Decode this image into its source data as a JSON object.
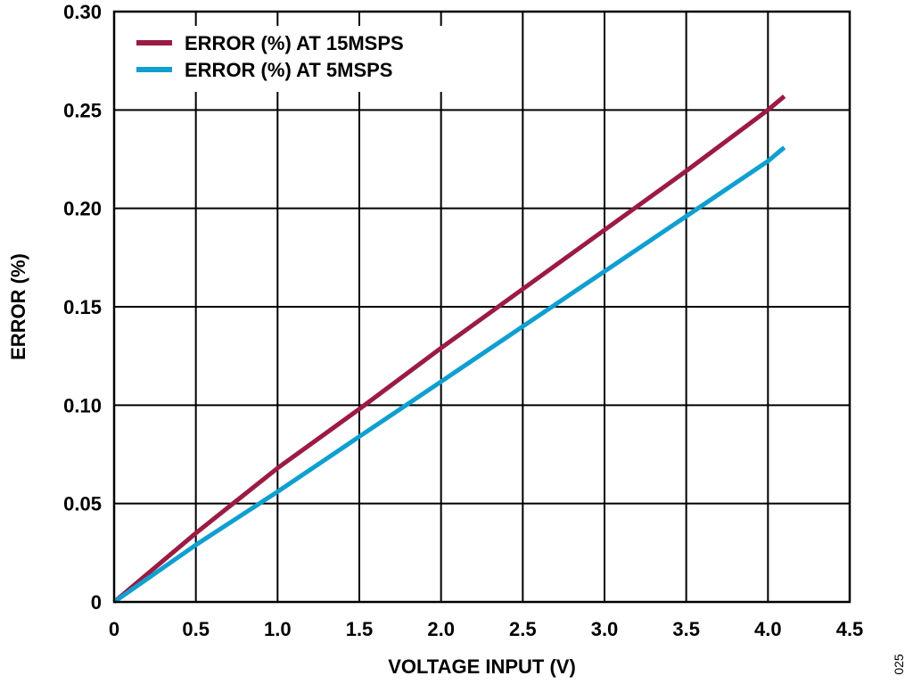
{
  "chart_data": {
    "type": "line",
    "xlabel": "VOLTAGE INPUT (V)",
    "ylabel": "ERROR (%)",
    "xlim": [
      0,
      4.5
    ],
    "ylim": [
      0,
      0.3
    ],
    "x_ticks": [
      0,
      0.5,
      1.0,
      1.5,
      2.0,
      2.5,
      3.0,
      3.5,
      4.0,
      4.5
    ],
    "x_tick_labels": [
      "0",
      "0.5",
      "1.0",
      "1.5",
      "2.0",
      "2.5",
      "3.0",
      "3.5",
      "4.0",
      "4.5"
    ],
    "y_ticks": [
      0,
      0.05,
      0.1,
      0.15,
      0.2,
      0.25,
      0.3
    ],
    "y_tick_labels": [
      "0",
      "0.05",
      "0.10",
      "0.15",
      "0.20",
      "0.25",
      "0.30"
    ],
    "grid": true,
    "legend_position": "top-left",
    "series": [
      {
        "name": "ERROR (%) AT 15MSPS",
        "color": "#9b1b42",
        "x": [
          0,
          0.5,
          1.0,
          1.5,
          2.0,
          2.5,
          3.0,
          3.5,
          4.0,
          4.1
        ],
        "y": [
          0,
          0.035,
          0.068,
          0.098,
          0.129,
          0.159,
          0.189,
          0.219,
          0.25,
          0.257
        ]
      },
      {
        "name": "ERROR (%) AT 5MSPS",
        "color": "#0f9fd0",
        "x": [
          0,
          0.5,
          1.0,
          1.5,
          2.0,
          2.5,
          3.0,
          3.5,
          4.0,
          4.1
        ],
        "y": [
          0,
          0.029,
          0.056,
          0.084,
          0.112,
          0.14,
          0.168,
          0.196,
          0.224,
          0.231
        ]
      }
    ]
  },
  "figure_id": "025"
}
